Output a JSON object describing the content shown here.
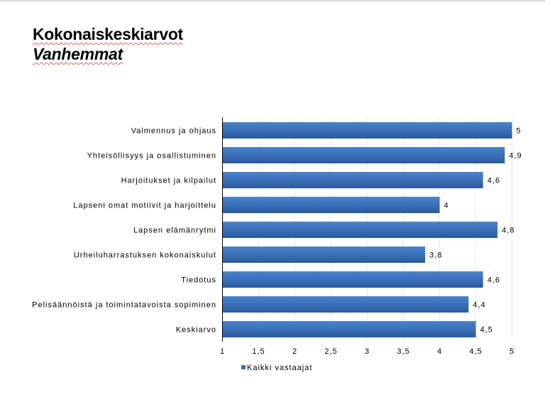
{
  "header": {
    "title": "Kokonaiskeskiarvot",
    "subtitle": "Vanhemmat"
  },
  "chart_data": {
    "type": "bar",
    "orientation": "horizontal",
    "title": "Kokonaiskeskiarvot",
    "subtitle": "Vanhemmat",
    "categories": [
      "Valmennus ja ohjaus",
      "Yhteisöllisyys ja osallistuminen",
      "Harjoitukset ja kilpailut",
      "Lapseni omat motiivit ja harjoittelu",
      "Lapsen elämänrytmi",
      "Urheiluharrastuksen kokonaiskulut",
      "Tiedotus",
      "Pelisäännöistä ja toimintatavoista sopiminen",
      "Keskiarvo"
    ],
    "series": [
      {
        "name": "Kaikki vastaajat",
        "values": [
          5,
          4.9,
          4.6,
          4,
          4.8,
          3.8,
          4.6,
          4.4,
          4.5
        ],
        "color": "#3a6fb8"
      }
    ],
    "data_labels": [
      "5",
      "4,9",
      "4,6",
      "4",
      "4,8",
      "3,8",
      "4,6",
      "4,4",
      "4,5"
    ],
    "xlim": [
      1,
      5
    ],
    "xticks": [
      1,
      1.5,
      2,
      2.5,
      3,
      3.5,
      4,
      4.5,
      5
    ],
    "xtick_labels": [
      "1",
      "1,5",
      "2",
      "2,5",
      "3",
      "3,5",
      "4",
      "4,5",
      "5"
    ],
    "grid": true,
    "legend": "bottom-left"
  }
}
